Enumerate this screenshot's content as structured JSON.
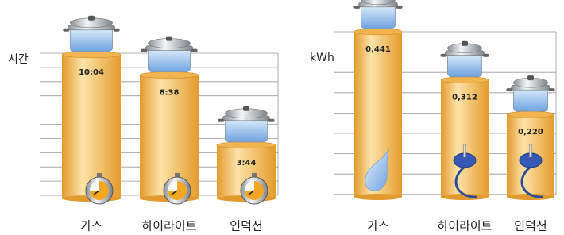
{
  "chart_data": [
    {
      "type": "bar",
      "y_label": "시간",
      "categories": [
        "가스",
        "하이라이트",
        "인덕션"
      ],
      "values": [
        604,
        518,
        224
      ],
      "value_labels": [
        "10:04",
        "8:38",
        "3:44"
      ],
      "ylim": [
        0,
        640
      ],
      "color": "#f2b450"
    },
    {
      "type": "bar",
      "y_label": "kWh",
      "categories": [
        "가스",
        "하이라이트",
        "인덕션"
      ],
      "values": [
        0.441,
        0.312,
        0.22
      ],
      "value_labels": [
        "0,441",
        "0,312",
        "0,220"
      ],
      "ylim": [
        0,
        0.5
      ],
      "color": "#f2b450"
    }
  ]
}
